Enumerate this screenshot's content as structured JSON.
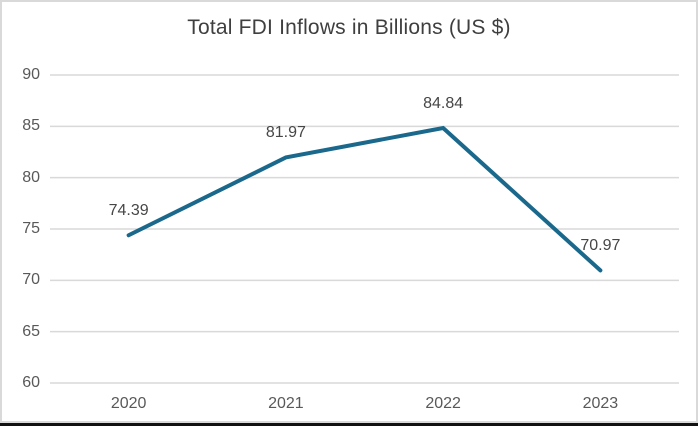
{
  "window": {
    "background": "#ffffff",
    "frame_border_color": "#d9d9d9",
    "bottom_edge_color": "#111111"
  },
  "chart_data": {
    "type": "line",
    "title": "Total FDI Inflows in Billions (US $)",
    "categories": [
      "2020",
      "2021",
      "2022",
      "2023"
    ],
    "values": [
      74.39,
      81.97,
      84.84,
      70.97
    ],
    "data_labels": [
      "74.39",
      "81.97",
      "84.84",
      "70.97"
    ],
    "xlabel": "",
    "ylabel": "",
    "ylim": [
      60,
      90
    ],
    "yticks": [
      90,
      85,
      80,
      75,
      70,
      65,
      60
    ],
    "grid": true,
    "legend": "none",
    "line_color": "#1a688b",
    "line_width": 4,
    "gridline_color": "#d9d9d9",
    "title_color": "#3f3f3f",
    "tick_label_color": "#595959",
    "data_label_color": "#464646"
  }
}
